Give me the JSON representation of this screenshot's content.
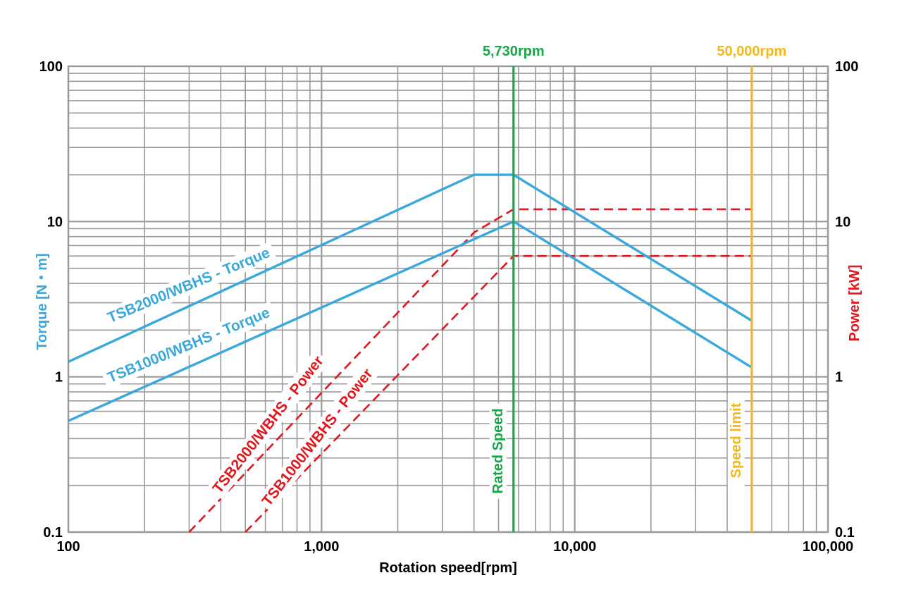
{
  "chart_data": {
    "type": "line",
    "x_scale": "log",
    "y_scale": "log",
    "xlabel": "Rotation speed[rpm]",
    "ylabel_left": "Torque [N・m]",
    "ylabel_right": "Power [kW]",
    "xlim": [
      100,
      100000
    ],
    "ylim": [
      0.1,
      100
    ],
    "x_ticks": [
      "100",
      "1,000",
      "10,000",
      "100,000"
    ],
    "y_ticks_left": [
      "0.1",
      "1",
      "10",
      "100"
    ],
    "y_ticks_right": [
      "0.1",
      "1",
      "10",
      "100"
    ],
    "grid": true,
    "colors": {
      "torque": "#3aa8dc",
      "power": "#e0181e",
      "rated": "#1aa64a",
      "limit": "#f2b81e",
      "grid": "#9a9a9a"
    },
    "series": [
      {
        "name": "TSB2000/WBHS - Torque",
        "axis": "left",
        "style": "solid",
        "color": "#3aa8dc",
        "points": [
          [
            100,
            1.25
          ],
          [
            4000,
            20
          ],
          [
            5730,
            20
          ],
          [
            50000,
            2.3
          ]
        ]
      },
      {
        "name": "TSB1000/WBHS - Torque",
        "axis": "left",
        "style": "solid",
        "color": "#3aa8dc",
        "points": [
          [
            100,
            0.52
          ],
          [
            5730,
            10
          ],
          [
            50000,
            1.15
          ]
        ]
      },
      {
        "name": "TSB2000/WBHS - Power",
        "axis": "right",
        "style": "dashed",
        "color": "#e0181e",
        "points": [
          [
            300,
            0.1
          ],
          [
            4000,
            8.5
          ],
          [
            5730,
            12
          ],
          [
            50000,
            12
          ]
        ]
      },
      {
        "name": "TSB1000/WBHS - Power",
        "axis": "right",
        "style": "dashed",
        "color": "#e0181e",
        "points": [
          [
            500,
            0.1
          ],
          [
            5730,
            6
          ],
          [
            50000,
            6
          ]
        ]
      }
    ],
    "vertical_markers": [
      {
        "x": 5730,
        "value_label": "5,730rpm",
        "name": "Rated Speed",
        "color": "#1aa64a"
      },
      {
        "x": 50000,
        "value_label": "50,000rpm",
        "name": "Speed limit",
        "color": "#f2b81e"
      }
    ]
  }
}
